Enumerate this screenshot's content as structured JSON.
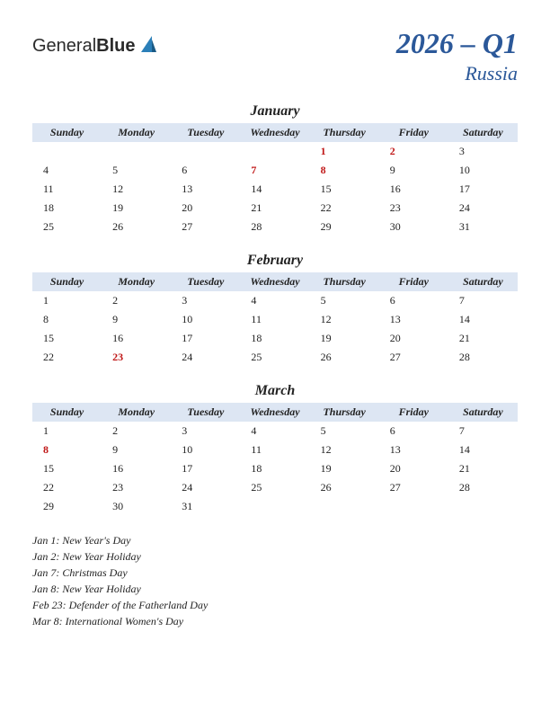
{
  "logo": {
    "part1": "General",
    "part2": "Blue"
  },
  "title": "2026 – Q1",
  "subtitle": "Russia",
  "colors": {
    "header_bg": "#dde6f3",
    "title_color": "#2b5899",
    "holiday_color": "#c01818",
    "text_color": "#222222",
    "logo_sail": "#2b7fb8"
  },
  "day_headers": [
    "Sunday",
    "Monday",
    "Tuesday",
    "Wednesday",
    "Thursday",
    "Friday",
    "Saturday"
  ],
  "months": [
    {
      "name": "January",
      "weeks": [
        [
          "",
          "",
          "",
          "",
          {
            "d": "1",
            "h": true
          },
          {
            "d": "2",
            "h": true
          },
          "3"
        ],
        [
          "4",
          "5",
          "6",
          {
            "d": "7",
            "h": true
          },
          {
            "d": "8",
            "h": true
          },
          "9",
          "10"
        ],
        [
          "11",
          "12",
          "13",
          "14",
          "15",
          "16",
          "17"
        ],
        [
          "18",
          "19",
          "20",
          "21",
          "22",
          "23",
          "24"
        ],
        [
          "25",
          "26",
          "27",
          "28",
          "29",
          "30",
          "31"
        ]
      ]
    },
    {
      "name": "February",
      "weeks": [
        [
          "1",
          "2",
          "3",
          "4",
          "5",
          "6",
          "7"
        ],
        [
          "8",
          "9",
          "10",
          "11",
          "12",
          "13",
          "14"
        ],
        [
          "15",
          "16",
          "17",
          "18",
          "19",
          "20",
          "21"
        ],
        [
          "22",
          {
            "d": "23",
            "h": true
          },
          "24",
          "25",
          "26",
          "27",
          "28"
        ]
      ]
    },
    {
      "name": "March",
      "weeks": [
        [
          "1",
          "2",
          "3",
          "4",
          "5",
          "6",
          "7"
        ],
        [
          {
            "d": "8",
            "h": true
          },
          "9",
          "10",
          "11",
          "12",
          "13",
          "14"
        ],
        [
          "15",
          "16",
          "17",
          "18",
          "19",
          "20",
          "21"
        ],
        [
          "22",
          "23",
          "24",
          "25",
          "26",
          "27",
          "28"
        ],
        [
          "29",
          "30",
          "31",
          "",
          "",
          "",
          ""
        ]
      ]
    }
  ],
  "holiday_list": [
    "Jan 1: New Year's Day",
    "Jan 2: New Year Holiday",
    "Jan 7: Christmas Day",
    "Jan 8: New Year Holiday",
    "Feb 23: Defender of the Fatherland Day",
    "Mar 8: International Women's Day"
  ]
}
